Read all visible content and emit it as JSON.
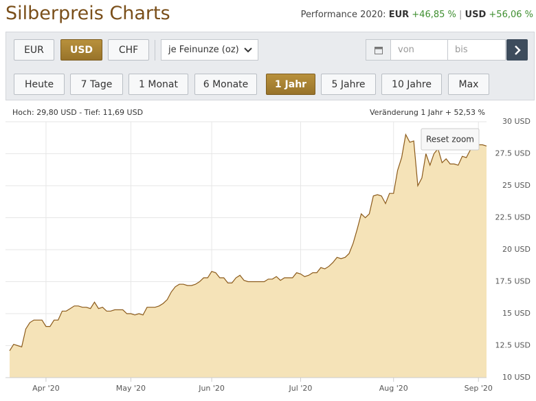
{
  "header": {
    "title": "Silberpreis Charts",
    "performance": {
      "label": "Performance 2020:",
      "eur_label": "EUR",
      "eur_value": "+46,85 %",
      "separator": "|",
      "usd_label": "USD",
      "usd_value": "+56,06 %"
    }
  },
  "controls": {
    "currencies": {
      "items": [
        "EUR",
        "USD",
        "CHF"
      ],
      "active": 1
    },
    "unit_select": "je Feinunze (oz)",
    "date_from": "von",
    "date_to": "bis",
    "ranges": {
      "items": [
        "Heute",
        "7 Tage",
        "1 Monat",
        "6 Monate",
        "1 Jahr",
        "5 Jahre",
        "10 Jahre",
        "Max"
      ],
      "active": 4
    }
  },
  "chart_data": {
    "type": "area",
    "subtitle": "Hoch: 29,80 USD - Tief: 11,69 USD",
    "annotation": "Veränderung 1 Jahr + 52,53 %",
    "reset_button": "Reset zoom",
    "categories": [
      null,
      null,
      null,
      null,
      null,
      null,
      null,
      null,
      null,
      "Apr '20",
      null,
      null,
      null,
      null,
      null,
      null,
      null,
      null,
      null,
      null,
      null,
      null,
      null,
      null,
      null,
      null,
      null,
      null,
      null,
      null,
      "May '20",
      null,
      null,
      null,
      null,
      null,
      null,
      null,
      null,
      null,
      null,
      null,
      null,
      null,
      null,
      null,
      null,
      null,
      null,
      null,
      "Jun '20",
      null,
      null,
      null,
      null,
      null,
      null,
      null,
      null,
      null,
      null,
      null,
      null,
      null,
      null,
      null,
      null,
      null,
      null,
      null,
      null,
      null,
      "Jul '20",
      null,
      null,
      null,
      null,
      null,
      null,
      null,
      null,
      null,
      null,
      null,
      null,
      null,
      null,
      null,
      null,
      null,
      null,
      null,
      null,
      null,
      null,
      "Aug '20",
      null,
      null,
      null,
      null,
      null,
      null,
      null,
      null,
      null,
      null,
      null,
      null,
      null,
      null,
      null,
      null,
      null,
      null,
      null,
      null,
      "Sep '20",
      null,
      null
    ],
    "values": [
      12.1,
      12.6,
      12.5,
      12.4,
      13.8,
      14.3,
      14.5,
      14.5,
      14.5,
      14.0,
      14.0,
      14.5,
      14.5,
      15.2,
      15.2,
      15.4,
      15.6,
      15.6,
      15.5,
      15.5,
      15.4,
      15.9,
      15.4,
      15.5,
      15.2,
      15.2,
      15.3,
      15.3,
      15.3,
      15.0,
      15.0,
      14.9,
      15.0,
      14.9,
      15.5,
      15.5,
      15.5,
      15.6,
      15.8,
      16.1,
      16.7,
      17.1,
      17.3,
      17.3,
      17.2,
      17.2,
      17.3,
      17.5,
      17.8,
      17.8,
      18.3,
      18.2,
      17.8,
      17.8,
      17.4,
      17.4,
      17.8,
      18.0,
      17.6,
      17.5,
      17.5,
      17.5,
      17.5,
      17.5,
      17.7,
      17.7,
      17.9,
      17.6,
      17.8,
      17.8,
      17.8,
      18.2,
      18.1,
      17.9,
      18.0,
      18.2,
      18.2,
      18.6,
      18.5,
      18.7,
      19.0,
      19.4,
      19.3,
      19.4,
      19.7,
      20.5,
      21.6,
      22.8,
      22.5,
      22.8,
      24.2,
      24.3,
      24.2,
      23.6,
      24.4,
      24.4,
      26.2,
      27.2,
      29.0,
      28.4,
      28.5,
      25.0,
      25.6,
      27.5,
      26.6,
      27.5,
      27.9,
      26.8,
      27.1,
      26.7,
      26.7,
      26.6,
      27.3,
      27.2,
      27.8,
      27.9,
      28.2,
      28.2,
      28.1
    ],
    "color": "#8b5a1a",
    "fill": "#f5e3b8",
    "ylim": [
      10,
      30
    ],
    "yticks": [
      {
        "value": 10,
        "label": "10 USD"
      },
      {
        "value": 12.5,
        "label": "12.5 USD"
      },
      {
        "value": 15,
        "label": "15 USD"
      },
      {
        "value": 17.5,
        "label": "17.5 USD"
      },
      {
        "value": 20,
        "label": "20 USD"
      },
      {
        "value": 22.5,
        "label": "22.5 USD"
      },
      {
        "value": 25,
        "label": "25 USD"
      },
      {
        "value": 27.5,
        "label": "27.5 USD"
      },
      {
        "value": 30,
        "label": "30 USD"
      }
    ],
    "y_axis_side": "right",
    "grid": true
  }
}
